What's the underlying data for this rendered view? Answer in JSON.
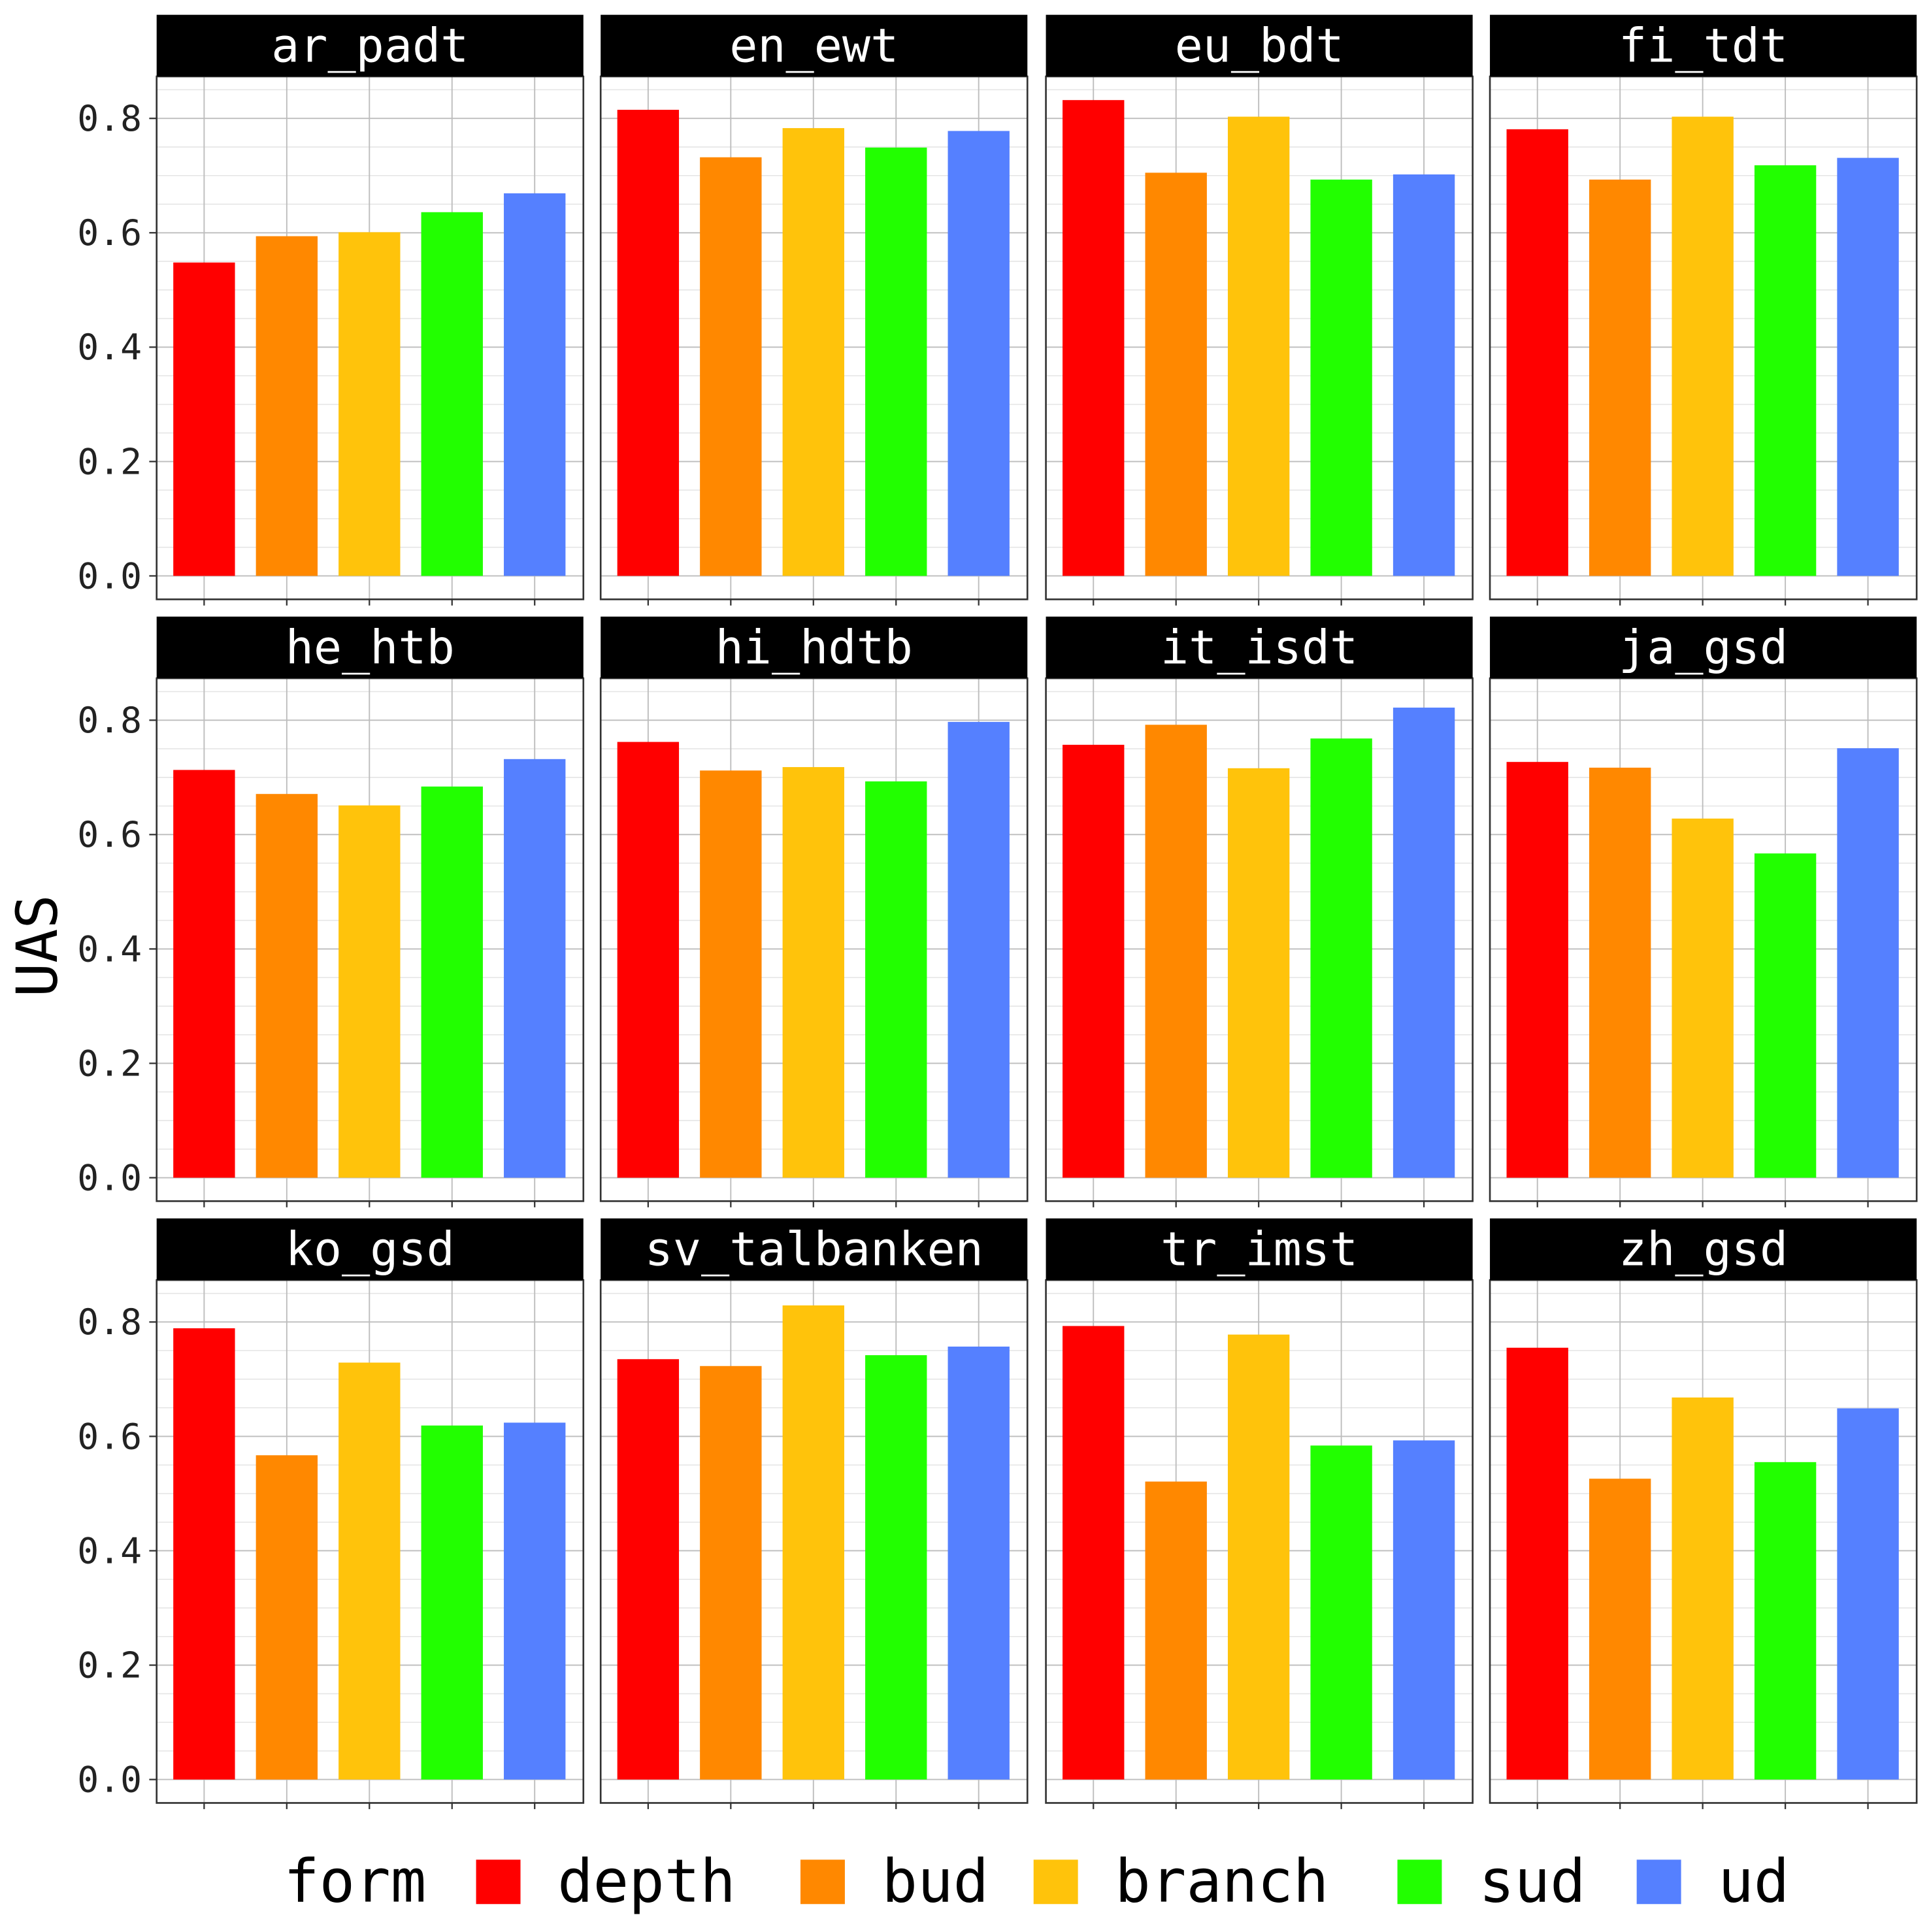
{
  "chart_data": {
    "type": "bar",
    "facet_layout": "3 rows x 4 columns, shared y axis",
    "ylabel": "UAS",
    "xlabel": "",
    "ylim": [
      0,
      0.87
    ],
    "yticks": [
      "0.0",
      "0.2",
      "0.4",
      "0.6",
      "0.8"
    ],
    "ytick_values": [
      0,
      0.2,
      0.4,
      0.6,
      0.8
    ],
    "grid": true,
    "legend": {
      "title": "form",
      "placement": "bottom",
      "entries": [
        {
          "name": "depth",
          "color": "#ff0000"
        },
        {
          "name": "bud",
          "color": "#ff8800"
        },
        {
          "name": "branch",
          "color": "#ffc30b"
        },
        {
          "name": "sud",
          "color": "#22ff00"
        },
        {
          "name": "ud",
          "color": "#5580ff"
        }
      ]
    },
    "categories": [
      "depth",
      "bud",
      "branch",
      "sud",
      "ud"
    ],
    "facets": [
      {
        "name": "ar_padt",
        "values": [
          0.548,
          0.594,
          0.601,
          0.636,
          0.669
        ]
      },
      {
        "name": "en_ewt",
        "values": [
          0.815,
          0.732,
          0.783,
          0.749,
          0.778
        ]
      },
      {
        "name": "eu_bdt",
        "values": [
          0.832,
          0.705,
          0.803,
          0.693,
          0.702
        ]
      },
      {
        "name": "fi_tdt",
        "values": [
          0.781,
          0.693,
          0.803,
          0.718,
          0.731
        ]
      },
      {
        "name": "he_htb",
        "values": [
          0.713,
          0.671,
          0.651,
          0.684,
          0.732
        ]
      },
      {
        "name": "hi_hdtb",
        "values": [
          0.762,
          0.712,
          0.718,
          0.693,
          0.797
        ]
      },
      {
        "name": "it_isdt",
        "values": [
          0.757,
          0.792,
          0.716,
          0.768,
          0.822
        ]
      },
      {
        "name": "ja_gsd",
        "values": [
          0.727,
          0.717,
          0.628,
          0.567,
          0.751
        ]
      },
      {
        "name": "ko_gsd",
        "values": [
          0.789,
          0.567,
          0.729,
          0.619,
          0.624
        ]
      },
      {
        "name": "sv_talbanken",
        "values": [
          0.735,
          0.723,
          0.829,
          0.742,
          0.757
        ]
      },
      {
        "name": "tr_imst",
        "values": [
          0.793,
          0.521,
          0.778,
          0.584,
          0.593
        ]
      },
      {
        "name": "zh_gsd",
        "values": [
          0.755,
          0.526,
          0.668,
          0.555,
          0.649
        ]
      }
    ]
  }
}
